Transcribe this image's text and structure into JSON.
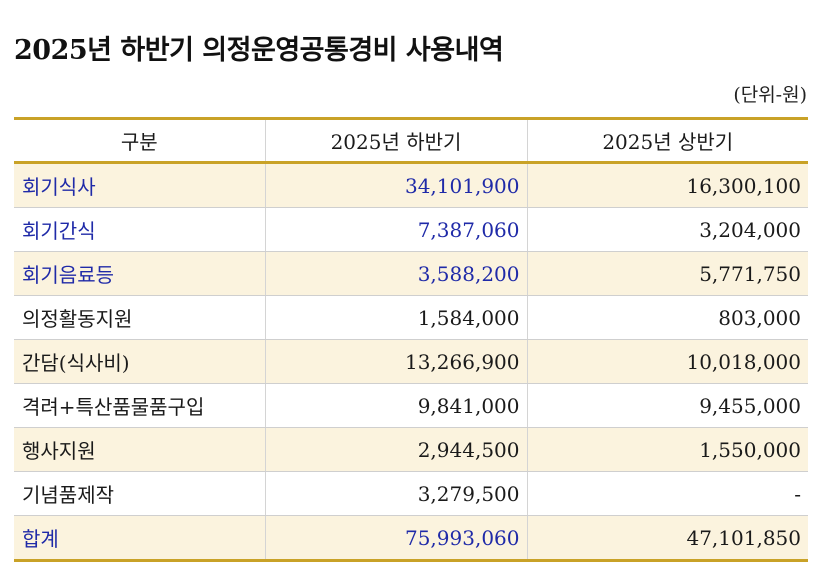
{
  "title": "2025년 하반기 의정운영공통경비 사용내역",
  "unit": "(단위-원)",
  "colors": {
    "border_gold": "#c9a227",
    "highlight_bg": "#fbf3de",
    "accent_blue": "#1f2aa8"
  },
  "table": {
    "headers": [
      "구분",
      "2025년 하반기",
      "2025년 상반기"
    ],
    "rows": [
      {
        "category": "회기식사",
        "h2": "34,101,900",
        "h1": "16,300,100"
      },
      {
        "category": "회기간식",
        "h2": "7,387,060",
        "h1": "3,204,000"
      },
      {
        "category": "회기음료등",
        "h2": "3,588,200",
        "h1": "5,771,750"
      },
      {
        "category": "의정활동지원",
        "h2": "1,584,000",
        "h1": "803,000"
      },
      {
        "category": "간담(식사비)",
        "h2": "13,266,900",
        "h1": "10,018,000"
      },
      {
        "category": "격려+특산품물품구입",
        "h2": "9,841,000",
        "h1": "9,455,000"
      },
      {
        "category": "행사지원",
        "h2": "2,944,500",
        "h1": "1,550,000"
      },
      {
        "category": "기념품제작",
        "h2": "3,279,500",
        "h1": "-"
      },
      {
        "category": "합계",
        "h2": "75,993,060",
        "h1": "47,101,850"
      }
    ]
  }
}
